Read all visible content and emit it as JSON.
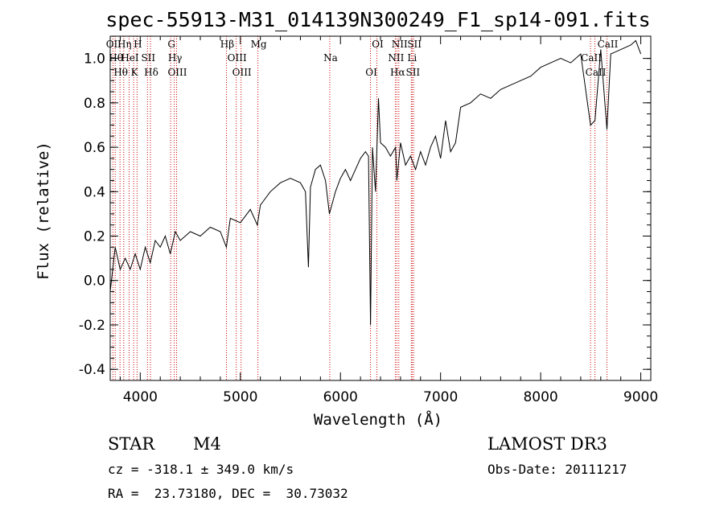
{
  "chart_data": {
    "type": "line",
    "title": "spec-55913-M31_014139N300249_F1_sp14-091.fits",
    "xlabel": "Wavelength (Å)",
    "ylabel": "Flux (relative)",
    "xlim": [
      3700,
      9100
    ],
    "ylim": [
      -0.45,
      1.1
    ],
    "xticks": [
      4000,
      5000,
      6000,
      7000,
      8000,
      9000
    ],
    "yticks": [
      -0.4,
      -0.2,
      0.0,
      0.2,
      0.4,
      0.6,
      0.8,
      1.0
    ],
    "ytick_labels": [
      "-0.4",
      "-0.2",
      "0.0",
      "0.2",
      "0.4",
      "0.6",
      "0.8",
      "1.0"
    ],
    "series": [
      {
        "name": "flux",
        "x": [
          3700,
          3750,
          3800,
          3850,
          3900,
          3950,
          4000,
          4050,
          4100,
          4150,
          4200,
          4250,
          4300,
          4350,
          4400,
          4500,
          4600,
          4700,
          4800,
          4860,
          4900,
          5000,
          5100,
          5170,
          5200,
          5300,
          5400,
          5500,
          5600,
          5650,
          5680,
          5700,
          5750,
          5800,
          5850,
          5890,
          5950,
          6000,
          6050,
          6100,
          6150,
          6200,
          6250,
          6280,
          6300,
          6320,
          6350,
          6380,
          6400,
          6450,
          6500,
          6550,
          6563,
          6600,
          6650,
          6700,
          6750,
          6800,
          6850,
          6900,
          6950,
          7000,
          7050,
          7100,
          7150,
          7200,
          7300,
          7400,
          7500,
          7600,
          7700,
          7800,
          7900,
          8000,
          8100,
          8200,
          8300,
          8400,
          8498,
          8542,
          8600,
          8662,
          8700,
          8800,
          8900,
          8950,
          9000
        ],
        "y": [
          -0.05,
          0.15,
          0.05,
          0.1,
          0.05,
          0.12,
          0.05,
          0.15,
          0.08,
          0.18,
          0.15,
          0.2,
          0.12,
          0.22,
          0.18,
          0.22,
          0.2,
          0.24,
          0.22,
          0.15,
          0.28,
          0.26,
          0.32,
          0.25,
          0.34,
          0.4,
          0.44,
          0.46,
          0.44,
          0.4,
          0.06,
          0.42,
          0.5,
          0.52,
          0.45,
          0.3,
          0.4,
          0.46,
          0.5,
          0.45,
          0.5,
          0.55,
          0.58,
          0.56,
          -0.2,
          0.6,
          0.4,
          0.82,
          0.62,
          0.6,
          0.56,
          0.6,
          0.45,
          0.62,
          0.52,
          0.56,
          0.5,
          0.58,
          0.52,
          0.6,
          0.65,
          0.55,
          0.72,
          0.58,
          0.62,
          0.78,
          0.8,
          0.84,
          0.82,
          0.86,
          0.88,
          0.9,
          0.92,
          0.96,
          0.98,
          1.0,
          0.98,
          1.02,
          0.7,
          0.72,
          1.04,
          0.68,
          1.02,
          1.04,
          1.06,
          1.08,
          1.02
        ]
      }
    ],
    "spectral_lines": [
      {
        "x": 3727,
        "label": "OII"
      },
      {
        "x": 3750,
        "label": "Hθ"
      },
      {
        "x": 3798,
        "label": "Hθ"
      },
      {
        "x": 3835,
        "label": "Hη"
      },
      {
        "x": 3889,
        "label": "HeI"
      },
      {
        "x": 3934,
        "label": "K"
      },
      {
        "x": 3968,
        "label": "H"
      },
      {
        "x": 4072,
        "label": "SII"
      },
      {
        "x": 4102,
        "label": "Hδ"
      },
      {
        "x": 4304,
        "label": "G"
      },
      {
        "x": 4340,
        "label": "Hγ"
      },
      {
        "x": 4363,
        "label": "OIII"
      },
      {
        "x": 4861,
        "label": "Hβ"
      },
      {
        "x": 4959,
        "label": "OIII"
      },
      {
        "x": 5007,
        "label": "OIII"
      },
      {
        "x": 5175,
        "label": "Mg"
      },
      {
        "x": 5893,
        "label": "Na"
      },
      {
        "x": 6300,
        "label": "OI"
      },
      {
        "x": 6364,
        "label": "OI"
      },
      {
        "x": 6548,
        "label": "NII"
      },
      {
        "x": 6563,
        "label": "Hα"
      },
      {
        "x": 6583,
        "label": "NII"
      },
      {
        "x": 6708,
        "label": "Li"
      },
      {
        "x": 6716,
        "label": "SII"
      },
      {
        "x": 6731,
        "label": "SII"
      },
      {
        "x": 8498,
        "label": "CaII"
      },
      {
        "x": 8542,
        "label": "CaII"
      },
      {
        "x": 8662,
        "label": "CaII"
      }
    ]
  },
  "info": {
    "class": "STAR",
    "subclass": "M4",
    "survey": "LAMOST DR3",
    "cz": "cz = -318.1 ± 349.0 km/s",
    "obs_date": "Obs-Date: 20111217",
    "radec": "RA =  23.73180, DEC =  30.73032"
  },
  "colors": {
    "spectrum": "#000000",
    "line_marker": "#cc0000",
    "axes": "#000000"
  }
}
